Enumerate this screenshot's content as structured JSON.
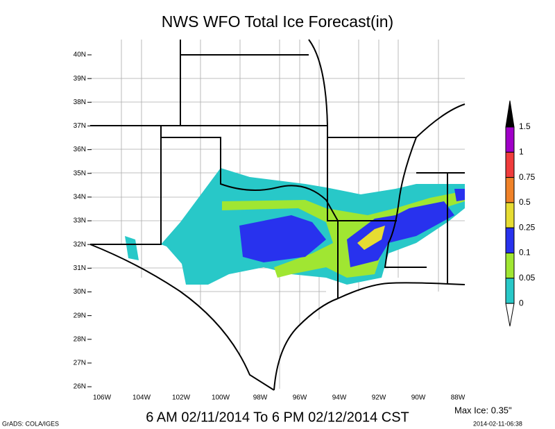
{
  "title": "NWS WFO Total Ice Forecast(in)",
  "valid_period": "6 AM 02/11/2014 To 6 PM 02/12/2014 CST",
  "max_ice": "Max Ice: 0.35\"",
  "credit": "GrADS: COLA/IGES",
  "timestamp": "2014-02-11-06:38",
  "lat_labels": [
    "40N",
    "39N",
    "38N",
    "37N",
    "36N",
    "35N",
    "34N",
    "33N",
    "32N",
    "31N",
    "30N",
    "29N",
    "28N",
    "27N",
    "26N"
  ],
  "lon_labels": [
    "106W",
    "104W",
    "102W",
    "100W",
    "98W",
    "96W",
    "94W",
    "92W",
    "90W",
    "88W"
  ],
  "legend": {
    "labels": [
      "1.5",
      "1",
      "0.75",
      "0.5",
      "0.25",
      "0.1",
      "0.05",
      "0"
    ],
    "colors": [
      "#000000",
      "#a000c8",
      "#f03c3c",
      "#f08228",
      "#e6dc32",
      "#2832ee",
      "#a0e632",
      "#28c8c8",
      "#ffffff"
    ]
  }
}
